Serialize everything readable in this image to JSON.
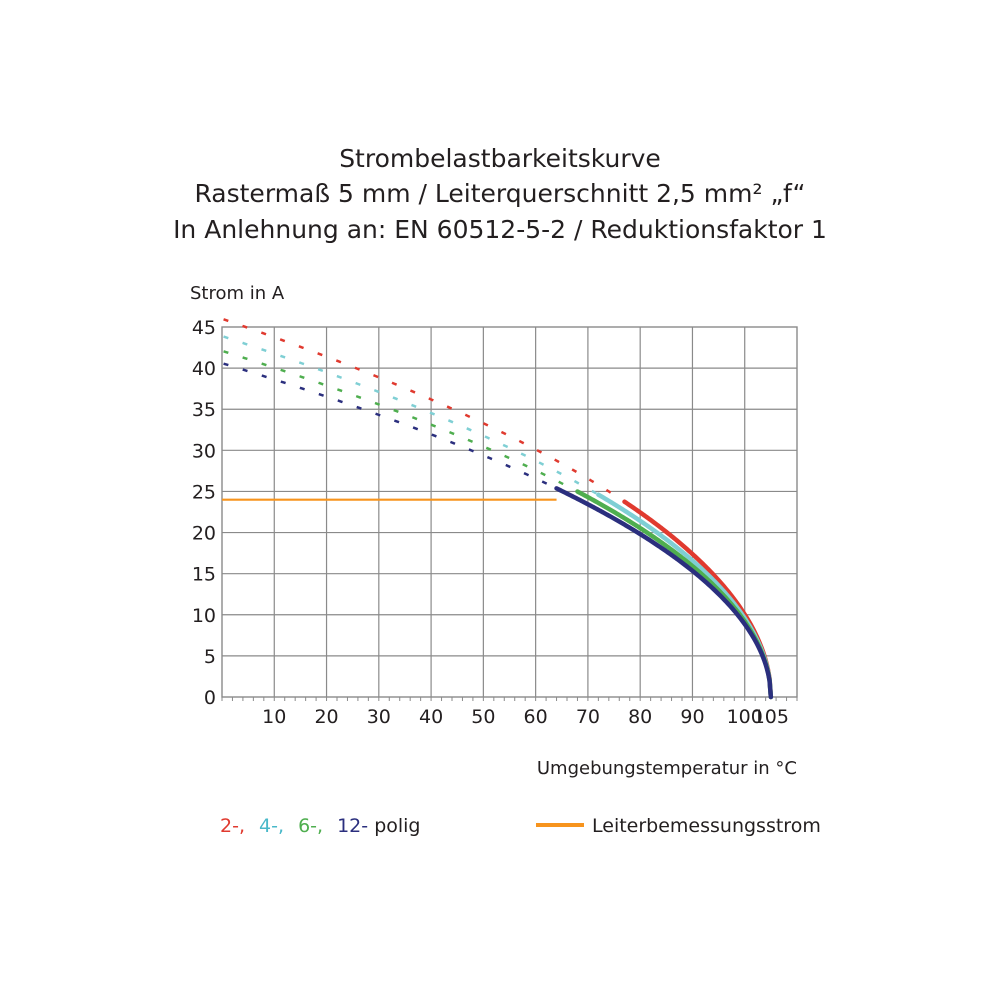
{
  "title": {
    "line1": "Strombelastbarkeitskurve",
    "line2": "Rastermaß 5 mm / Leiterquerschnitt 2,5 mm² „f“",
    "line3": "In Anlehnung an: EN 60512-5-2 / Reduktionsfaktor 1"
  },
  "legend": {
    "s2": "2-,",
    "s4": "4-,",
    "s6": "6-,",
    "s12": "12-",
    "suffix": "polig",
    "reference": "Leiterbemessungsstrom"
  },
  "chart_data": {
    "type": "line",
    "ylabel": "Strom in A",
    "xlabel": "Umgebungstemperatur in °C",
    "xlim": [
      0,
      110
    ],
    "ylim": [
      0,
      45
    ],
    "x_ticks": [
      "10",
      "20",
      "30",
      "40",
      "50",
      "60",
      "70",
      "80",
      "90",
      "100",
      "105"
    ],
    "x_tick_values": [
      10,
      20,
      30,
      40,
      50,
      60,
      70,
      80,
      90,
      100,
      105
    ],
    "y_ticks": [
      "0",
      "5",
      "10",
      "15",
      "20",
      "25",
      "30",
      "35",
      "40",
      "45"
    ],
    "y_tick_values": [
      0,
      5,
      10,
      15,
      20,
      25,
      30,
      35,
      40,
      45
    ],
    "grid": true,
    "t_max": 105,
    "reference_current": 24,
    "series": [
      {
        "name": "2-",
        "color": "#e03a2f",
        "i0": 46.0,
        "dashed_until": 77
      },
      {
        "name": "4-",
        "color": "#7fcfd4",
        "i0": 43.9,
        "dashed_until": 72
      },
      {
        "name": "6-",
        "color": "#4fae4f",
        "i0": 42.1,
        "dashed_until": 68
      },
      {
        "name": "12-",
        "color": "#2b2f7e",
        "i0": 40.6,
        "dashed_until": 64
      }
    ],
    "reference_line": {
      "name": "Leiterbemessungsstrom",
      "color": "#f7941d",
      "y": 24,
      "x": [
        0,
        64
      ]
    }
  }
}
